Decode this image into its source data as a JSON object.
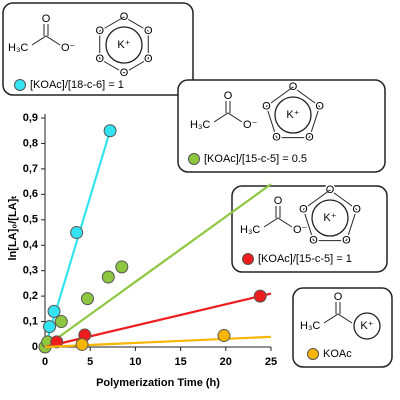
{
  "chart_data": {
    "type": "scatter",
    "x_label": "Polymerization Time (h)",
    "y_label": "ln[LA]₀/[LA]ₜ",
    "xlim": [
      0,
      25
    ],
    "xticks": [
      0,
      5,
      10,
      15,
      20,
      25
    ],
    "ylim": [
      0,
      0.9
    ],
    "yticks": [
      0,
      {
        "value": 0.1,
        "label": "0,1"
      },
      {
        "value": 0.2,
        "label": "0,2"
      },
      {
        "value": 0.3,
        "label": "0,3"
      },
      {
        "value": 0.4,
        "label": "0,4"
      },
      {
        "value": 0.5,
        "label": "0,5"
      },
      {
        "value": 0.6,
        "label": "0,6"
      },
      {
        "value": 0.7,
        "label": "0,7"
      },
      {
        "value": 0.8,
        "label": "0,8"
      },
      {
        "value": 0.9,
        "label": "0,9"
      }
    ],
    "grid": false,
    "structure": {
      "methyl": "H₃C",
      "carbonyl_o": "O",
      "anion_o": "O⁻",
      "cation": "K⁺",
      "ether_o": "O"
    },
    "series": [
      {
        "name": "[KOAc]/[18-c-6] = 1",
        "color": "#33e3f2",
        "crown": 18,
        "x": [
          0.5,
          1,
          3.5,
          7.2
        ],
        "values": [
          0.08,
          0.14,
          0.45,
          0.85
        ],
        "fit": {
          "x": [
            0,
            7.2
          ],
          "values": [
            0,
            0.85
          ]
        }
      },
      {
        "name": "[KOAc]/[15-c-5] = 0.5",
        "color": "#8dc63f",
        "crown": 15,
        "x": [
          0,
          0.3,
          1.8,
          4.7,
          7,
          8.5
        ],
        "values": [
          0,
          0.02,
          0.1,
          0.19,
          0.275,
          0.315
        ],
        "fit": {
          "x": [
            0,
            25
          ],
          "values": [
            0,
            0.64
          ]
        }
      },
      {
        "name": "[KOAc]/[15-c-5] = 1",
        "color": "#ee1c1c",
        "crown": 15,
        "x": [
          1.3,
          4.4,
          23.8
        ],
        "values": [
          0.02,
          0.047,
          0.2
        ],
        "fit": {
          "x": [
            0,
            25
          ],
          "values": [
            0,
            0.21
          ]
        }
      },
      {
        "name": "KOAc",
        "color": "#f7b500",
        "crown": 0,
        "x": [
          4.1,
          19.8
        ],
        "values": [
          0.01,
          0.045
        ],
        "fit": {
          "x": [
            0,
            25
          ],
          "values": [
            0,
            0.04
          ]
        }
      }
    ]
  }
}
